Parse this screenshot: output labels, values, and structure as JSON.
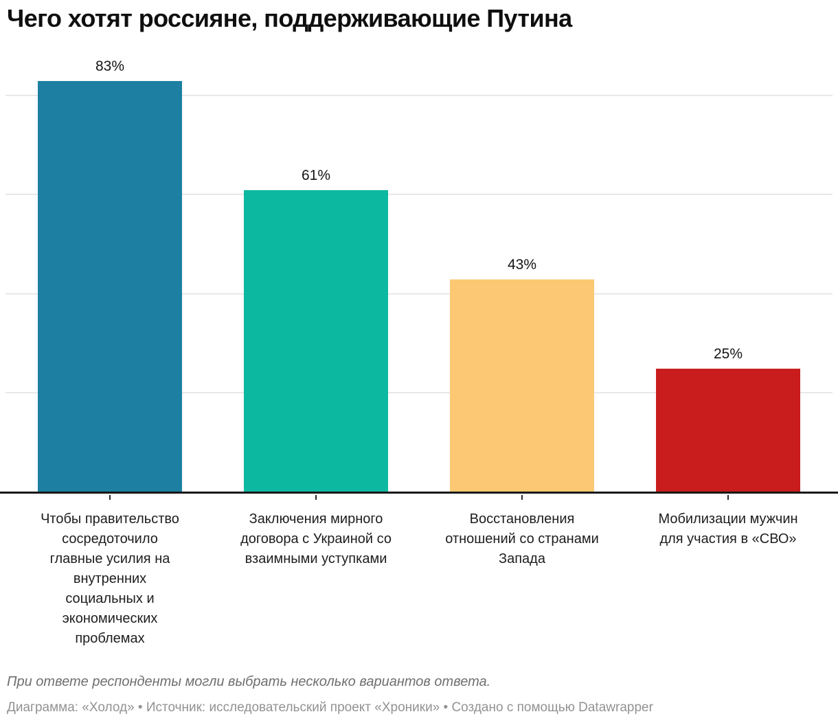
{
  "chart_data": {
    "type": "bar",
    "title": "Чего хотят россияне, поддерживающие Путина",
    "categories": [
      "Чтобы правительство\nсосредоточило\nглавные усилия на\nвнутренних\nсоциальных и\nэкономических\nпроблемах",
      "Заключения мирного\nдоговора с Украиной со\nвзаимными уступками",
      "Восстановления\nотношений со странами\nЗапада",
      "Мобилизации мужчин\nдля участия в «СВО»"
    ],
    "values": [
      83,
      61,
      43,
      25
    ],
    "value_labels": [
      "83%",
      "61%",
      "43%",
      "25%"
    ],
    "bar_colors": [
      "#1d80a2",
      "#0cb9a0",
      "#fdc873",
      "#c91d1d"
    ],
    "xlabel": "",
    "ylabel": "",
    "ylim": [
      0,
      87
    ],
    "gridline_values": [
      20,
      40,
      60,
      80
    ],
    "grid": "horizontal gridlines, no y-axis tick labels",
    "legend": "none"
  },
  "footer": {
    "footnote": "При ответе респонденты могли выбрать несколько вариантов ответа.",
    "attribution": "Диаграмма: «Холод» • Источник: исследовательский проект «Хроники» • Создано с помощью Datawrapper"
  },
  "colors": {
    "background": "#ffffff",
    "axis_line": "#181818",
    "gridline": "#e8e8e8",
    "value_label_text": "#141414",
    "category_label_text": "#1d1d1d",
    "footnote_text": "#6f6f6f",
    "attribution_text": "#929292"
  }
}
